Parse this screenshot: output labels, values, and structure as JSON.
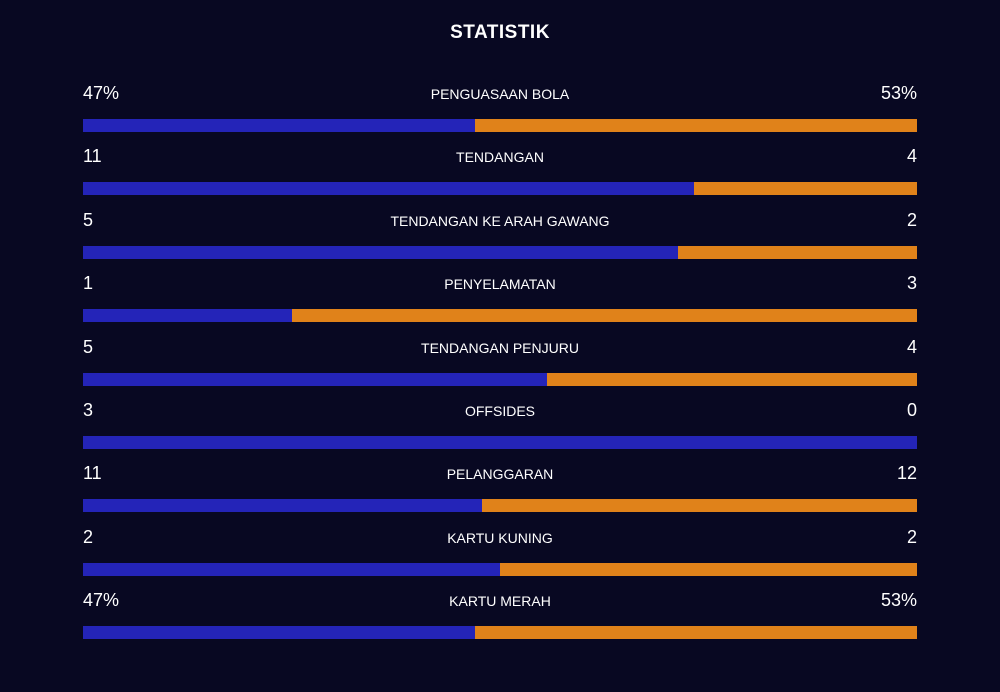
{
  "title": "STATISTIK",
  "colors": {
    "background": "#080822",
    "home": "#2424b8",
    "away": "#e0821a"
  },
  "stats": [
    {
      "label": "PENGUASAAN BOLA",
      "home": "47%",
      "away": "53%",
      "home_share": 0.47
    },
    {
      "label": "TENDANGAN",
      "home": "11",
      "away": "4",
      "home_share": 0.733
    },
    {
      "label": "TENDANGAN KE ARAH GAWANG",
      "home": "5",
      "away": "2",
      "home_share": 0.714
    },
    {
      "label": "PENYELAMATAN",
      "home": "1",
      "away": "3",
      "home_share": 0.25
    },
    {
      "label": "TENDANGAN PENJURU",
      "home": "5",
      "away": "4",
      "home_share": 0.556
    },
    {
      "label": "OFFSIDES",
      "home": "3",
      "away": "0",
      "home_share": 1.0
    },
    {
      "label": "PELANGGARAN",
      "home": "11",
      "away": "12",
      "home_share": 0.478
    },
    {
      "label": "KARTU KUNING",
      "home": "2",
      "away": "2",
      "home_share": 0.5
    },
    {
      "label": "KARTU MERAH",
      "home": "47%",
      "away": "53%",
      "home_share": 0.47
    }
  ]
}
